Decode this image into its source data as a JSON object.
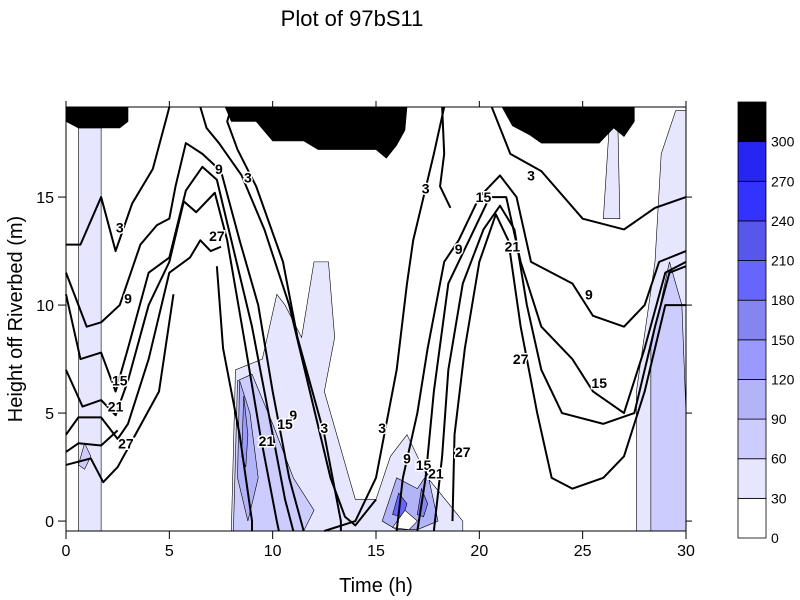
{
  "chart_data": {
    "type": "contour",
    "title": "Plot of 97bS11",
    "xlabel": "Time (h)",
    "ylabel": "Height off Riverbed (m)",
    "xlim": [
      0,
      30
    ],
    "ylim": [
      -0.46,
      19.17
    ],
    "xticks": [
      0,
      5,
      10,
      15,
      20,
      25,
      30
    ],
    "yticks": [
      0,
      5,
      10,
      15
    ],
    "colorbar": {
      "levels": [
        0,
        30,
        60,
        90,
        120,
        150,
        180,
        210,
        240,
        270,
        300
      ],
      "tick_labels": [
        "0",
        "30",
        "60",
        "90",
        "120",
        "150",
        "180",
        "210",
        "240",
        "270",
        "300"
      ],
      "colors": [
        "#ffffff",
        "#e6e6ff",
        "#ccccff",
        "#b3b3f7",
        "#9999ff",
        "#8585f2",
        "#6666ff",
        "#5757eb",
        "#3333ff",
        "#2626f2",
        "#000000"
      ]
    },
    "filled_regions": [
      {
        "level": 30,
        "points": [
          [
            0.6,
            -0.46
          ],
          [
            0.6,
            18.2
          ],
          [
            1.7,
            18.2
          ],
          [
            1.7,
            -0.46
          ]
        ]
      },
      {
        "level": 60,
        "points": [
          [
            0.6,
            2.6
          ],
          [
            0.9,
            3.6
          ],
          [
            1.2,
            3
          ],
          [
            0.9,
            2.4
          ]
        ]
      },
      {
        "level": 30,
        "points": [
          [
            8,
            -0.46
          ],
          [
            8.2,
            7
          ],
          [
            9.5,
            7.5
          ],
          [
            10.2,
            10.5
          ],
          [
            10.6,
            10
          ],
          [
            11.4,
            8.5
          ],
          [
            12,
            12
          ],
          [
            12.7,
            12
          ],
          [
            13,
            8.5
          ],
          [
            12.5,
            6
          ],
          [
            14,
            1
          ],
          [
            15,
            1
          ],
          [
            15.7,
            3
          ],
          [
            16.5,
            4
          ],
          [
            17.5,
            2
          ],
          [
            19.2,
            0
          ],
          [
            19.2,
            -0.46
          ]
        ]
      },
      {
        "level": 60,
        "points": [
          [
            8.1,
            -0.46
          ],
          [
            8.3,
            6.5
          ],
          [
            9,
            6.8
          ],
          [
            10,
            4.5
          ],
          [
            11,
            2
          ],
          [
            12,
            0.5
          ],
          [
            11.5,
            -0.46
          ]
        ]
      },
      {
        "level": 90,
        "points": [
          [
            8.3,
            2
          ],
          [
            8.4,
            6.5
          ],
          [
            8.9,
            5
          ],
          [
            9.3,
            2
          ],
          [
            8.8,
            0
          ]
        ]
      },
      {
        "level": 120,
        "points": [
          [
            8.5,
            3
          ],
          [
            8.6,
            5.8
          ],
          [
            8.8,
            4
          ],
          [
            8.7,
            2.5
          ]
        ]
      },
      {
        "level": 30,
        "points": [
          [
            27.6,
            -0.46
          ],
          [
            27.6,
            6
          ],
          [
            28.5,
            12
          ],
          [
            28.8,
            17
          ],
          [
            29.5,
            19
          ],
          [
            30,
            19
          ],
          [
            30,
            -0.46
          ]
        ]
      },
      {
        "level": 60,
        "points": [
          [
            28.3,
            -0.46
          ],
          [
            28.3,
            8
          ],
          [
            29.2,
            12
          ],
          [
            29.8,
            10
          ],
          [
            30,
            5
          ],
          [
            30,
            -0.46
          ]
        ]
      },
      {
        "level": 30,
        "points": [
          [
            26,
            14
          ],
          [
            26.3,
            18.5
          ],
          [
            26.7,
            18.5
          ],
          [
            26.8,
            14
          ]
        ]
      },
      {
        "level": 90,
        "points": [
          [
            15.3,
            0
          ],
          [
            16,
            2
          ],
          [
            17,
            1.5
          ],
          [
            17.5,
            2.2
          ],
          [
            18,
            0
          ],
          [
            17,
            -0.4
          ],
          [
            16,
            -0.4
          ]
        ]
      },
      {
        "level": 180,
        "points": [
          [
            15.8,
            0.3
          ],
          [
            16.1,
            1.3
          ],
          [
            16.5,
            0.8
          ],
          [
            16.3,
            0.2
          ]
        ]
      },
      {
        "level": 150,
        "points": [
          [
            17,
            0.3
          ],
          [
            17.2,
            1.5
          ],
          [
            17.5,
            0.8
          ],
          [
            17.3,
            0.2
          ]
        ]
      },
      {
        "level": 0,
        "points": [
          [
            15.8,
            -0.3
          ],
          [
            16.4,
            0.5
          ],
          [
            17,
            0
          ],
          [
            16.6,
            -0.4
          ]
        ]
      },
      {
        "level": 300,
        "points": [
          [
            0,
            19.17
          ],
          [
            3,
            19.17
          ],
          [
            3,
            18.5
          ],
          [
            2.6,
            18.2
          ],
          [
            0.6,
            18.2
          ],
          [
            0,
            18.5
          ]
        ]
      },
      {
        "level": 300,
        "points": [
          [
            7.7,
            19.17
          ],
          [
            16.5,
            19.17
          ],
          [
            16.4,
            18.1
          ],
          [
            16,
            17.4
          ],
          [
            15.5,
            16.8
          ],
          [
            15,
            17.2
          ],
          [
            12.2,
            17.2
          ],
          [
            11.5,
            17.6
          ],
          [
            10,
            17.6
          ],
          [
            9.2,
            18.5
          ],
          [
            8,
            18.5
          ]
        ]
      },
      {
        "level": 300,
        "points": [
          [
            21.1,
            19.17
          ],
          [
            27.5,
            19.17
          ],
          [
            27.5,
            18.5
          ],
          [
            27,
            17.8
          ],
          [
            26.5,
            18.2
          ],
          [
            25.8,
            17.5
          ],
          [
            23,
            17.5
          ],
          [
            22.4,
            17.9
          ],
          [
            21.6,
            18.3
          ]
        ]
      }
    ],
    "contour_lines": [
      [
        [
          0,
          12.8
        ],
        [
          0.7,
          12.8
        ],
        [
          1.7,
          15
        ],
        [
          2.4,
          12.5
        ],
        [
          3.2,
          14.7
        ],
        [
          4.2,
          16.3
        ],
        [
          4.9,
          18.8
        ],
        [
          5,
          19.17
        ]
      ],
      [
        [
          8,
          19.17
        ],
        [
          7.8,
          18.5
        ],
        [
          8.3,
          17.2
        ],
        [
          9.2,
          15.5
        ],
        [
          10.5,
          12
        ],
        [
          11.2,
          8.5
        ],
        [
          12.5,
          4
        ],
        [
          13.3,
          0
        ],
        [
          13.3,
          -0.46
        ]
      ],
      [
        [
          0,
          11.5
        ],
        [
          1,
          9
        ],
        [
          1.7,
          9.2
        ],
        [
          2.6,
          10
        ],
        [
          3.6,
          12.8
        ],
        [
          4.4,
          13.7
        ],
        [
          5,
          14
        ],
        [
          5.3,
          15.5
        ],
        [
          5.8,
          17.5
        ],
        [
          6.6,
          17
        ],
        [
          7.5,
          16.2
        ],
        [
          8.4,
          13
        ],
        [
          9.3,
          10
        ],
        [
          10,
          6
        ],
        [
          10.8,
          2
        ],
        [
          11.5,
          -0.46
        ]
      ],
      [
        [
          0,
          10.5
        ],
        [
          0.7,
          7.5
        ],
        [
          1.7,
          7.8
        ],
        [
          2.4,
          6
        ],
        [
          3,
          8
        ],
        [
          4,
          11.5
        ],
        [
          5,
          12.2
        ],
        [
          5.8,
          15.3
        ],
        [
          6.6,
          16.4
        ],
        [
          7.3,
          15.8
        ],
        [
          8,
          13
        ],
        [
          9,
          9
        ],
        [
          9.8,
          5
        ],
        [
          10.6,
          1
        ],
        [
          11,
          -0.46
        ]
      ],
      [
        [
          0,
          7
        ],
        [
          0.8,
          5.3
        ],
        [
          1.7,
          5.6
        ],
        [
          2.4,
          4.9
        ],
        [
          3,
          6.5
        ],
        [
          4,
          10
        ],
        [
          5,
          12
        ],
        [
          5.7,
          14.8
        ],
        [
          6.3,
          14.3
        ],
        [
          7.2,
          15.2
        ],
        [
          7.8,
          13
        ],
        [
          8.7,
          8
        ],
        [
          9.4,
          4
        ],
        [
          10.2,
          0
        ],
        [
          10.3,
          -0.46
        ]
      ],
      [
        [
          0,
          4
        ],
        [
          0.6,
          4.8
        ],
        [
          1.7,
          4.8
        ],
        [
          2.5,
          3.8
        ],
        [
          3,
          4.5
        ],
        [
          4,
          7.5
        ],
        [
          5,
          11.5
        ],
        [
          6,
          12.2
        ],
        [
          6.5,
          13
        ],
        [
          7,
          12.5
        ],
        [
          7.5,
          12.7
        ]
      ],
      [
        [
          7.3,
          11.8
        ],
        [
          7.6,
          8
        ],
        [
          8.4,
          4
        ],
        [
          9,
          0
        ],
        [
          9,
          -0.46
        ]
      ],
      [
        [
          0,
          3.2
        ],
        [
          0.6,
          3.6
        ],
        [
          1.7,
          3.5
        ],
        [
          2.5,
          4.2
        ]
      ],
      [
        [
          0,
          2.6
        ],
        [
          1.2,
          2.9
        ],
        [
          1.8,
          1.8
        ],
        [
          2.5,
          2.5
        ],
        [
          4.5,
          6
        ],
        [
          5.2,
          10.5
        ]
      ],
      [
        [
          6.5,
          19.17
        ],
        [
          6.8,
          18.2
        ],
        [
          7.4,
          17.5
        ],
        [
          8.5,
          16
        ],
        [
          9.6,
          13.5
        ],
        [
          10.8,
          10
        ],
        [
          11.8,
          6
        ],
        [
          12.8,
          2
        ],
        [
          13.5,
          0.2
        ],
        [
          14,
          -0.2
        ],
        [
          15,
          1
        ]
      ],
      [
        [
          12.5,
          -0.46
        ],
        [
          14,
          0
        ],
        [
          15,
          2
        ],
        [
          15.5,
          4.5
        ],
        [
          16,
          7
        ],
        [
          16.5,
          11
        ],
        [
          16.8,
          13
        ],
        [
          17.3,
          15
        ],
        [
          17.8,
          17
        ],
        [
          18.3,
          19.17
        ]
      ],
      [
        [
          20.6,
          19.17
        ],
        [
          21.5,
          17
        ],
        [
          23,
          16.2
        ],
        [
          25,
          14
        ],
        [
          27,
          13.5
        ],
        [
          28.5,
          14.5
        ],
        [
          30,
          15
        ]
      ],
      [
        [
          16,
          -0.46
        ],
        [
          16.3,
          2
        ],
        [
          17,
          5
        ],
        [
          17.5,
          8
        ],
        [
          18.3,
          12
        ],
        [
          19,
          13
        ],
        [
          20,
          15
        ],
        [
          21,
          16
        ],
        [
          21.8,
          15
        ],
        [
          22.5,
          12
        ],
        [
          24.5,
          11
        ],
        [
          25.5,
          9.5
        ],
        [
          27,
          9
        ],
        [
          28,
          10
        ],
        [
          28.7,
          12
        ],
        [
          30,
          12.5
        ]
      ],
      [
        [
          17,
          -0.46
        ],
        [
          17.4,
          2
        ],
        [
          17.8,
          6
        ],
        [
          18.5,
          11
        ],
        [
          19.5,
          13
        ],
        [
          20.5,
          15
        ],
        [
          21.3,
          15
        ],
        [
          22,
          12
        ],
        [
          23,
          9
        ],
        [
          24.5,
          7.5
        ],
        [
          25.5,
          6
        ],
        [
          27,
          5
        ],
        [
          28,
          8
        ],
        [
          29,
          11.5
        ],
        [
          30,
          12
        ]
      ],
      [
        [
          17.8,
          -0.46
        ],
        [
          18.2,
          3
        ],
        [
          18.5,
          7
        ],
        [
          19.2,
          11
        ],
        [
          20.2,
          13.5
        ],
        [
          21,
          14.6
        ],
        [
          21.7,
          13.5
        ],
        [
          22.3,
          10
        ],
        [
          23,
          7
        ],
        [
          24,
          5
        ],
        [
          26,
          4.5
        ],
        [
          27.5,
          5
        ],
        [
          28.5,
          9
        ],
        [
          29.2,
          11.5
        ],
        [
          30,
          11.8
        ]
      ],
      [
        [
          18.7,
          0
        ],
        [
          18.8,
          4
        ],
        [
          19.3,
          8
        ],
        [
          20,
          12
        ],
        [
          20.8,
          14.2
        ],
        [
          21.4,
          13
        ],
        [
          22,
          9
        ],
        [
          22.8,
          5
        ],
        [
          23.5,
          2
        ],
        [
          24.5,
          1.5
        ],
        [
          26,
          2
        ],
        [
          27,
          3
        ],
        [
          28,
          6
        ],
        [
          28.5,
          8
        ],
        [
          29,
          10
        ],
        [
          30,
          10
        ]
      ],
      [
        [
          18.2,
          19.17
        ],
        [
          18.3,
          17
        ],
        [
          18.1,
          15.5
        ],
        [
          18.6,
          14.5
        ]
      ]
    ],
    "contour_labels": [
      {
        "text": "3",
        "t": 2.6,
        "h": 13.6
      },
      {
        "text": "9",
        "t": 3,
        "h": 10.3
      },
      {
        "text": "15",
        "t": 2.6,
        "h": 6.5
      },
      {
        "text": "21",
        "t": 2.4,
        "h": 5.3
      },
      {
        "text": "27",
        "t": 2.9,
        "h": 3.6
      },
      {
        "text": "3",
        "t": 8.8,
        "h": 15.9
      },
      {
        "text": "9",
        "t": 7.4,
        "h": 16.3
      },
      {
        "text": "27",
        "t": 7.3,
        "h": 13.2
      },
      {
        "text": "9",
        "t": 11,
        "h": 4.9
      },
      {
        "text": "15",
        "t": 10.6,
        "h": 4.5
      },
      {
        "text": "21",
        "t": 9.7,
        "h": 3.7
      },
      {
        "text": "3",
        "t": 12.5,
        "h": 4.3
      },
      {
        "text": "3",
        "t": 15.3,
        "h": 4.3
      },
      {
        "text": "9",
        "t": 16.5,
        "h": 2.9
      },
      {
        "text": "15",
        "t": 17.3,
        "h": 2.6
      },
      {
        "text": "21",
        "t": 17.9,
        "h": 2.2
      },
      {
        "text": "27",
        "t": 19.2,
        "h": 3.2
      },
      {
        "text": "3",
        "t": 17.4,
        "h": 15.4
      },
      {
        "text": "9",
        "t": 19,
        "h": 12.6
      },
      {
        "text": "15",
        "t": 20.2,
        "h": 15
      },
      {
        "text": "21",
        "t": 21.6,
        "h": 12.7
      },
      {
        "text": "3",
        "t": 22.5,
        "h": 16
      },
      {
        "text": "9",
        "t": 25.3,
        "h": 10.5
      },
      {
        "text": "15",
        "t": 25.8,
        "h": 6.4
      },
      {
        "text": "27",
        "t": 22,
        "h": 7.5
      }
    ]
  }
}
